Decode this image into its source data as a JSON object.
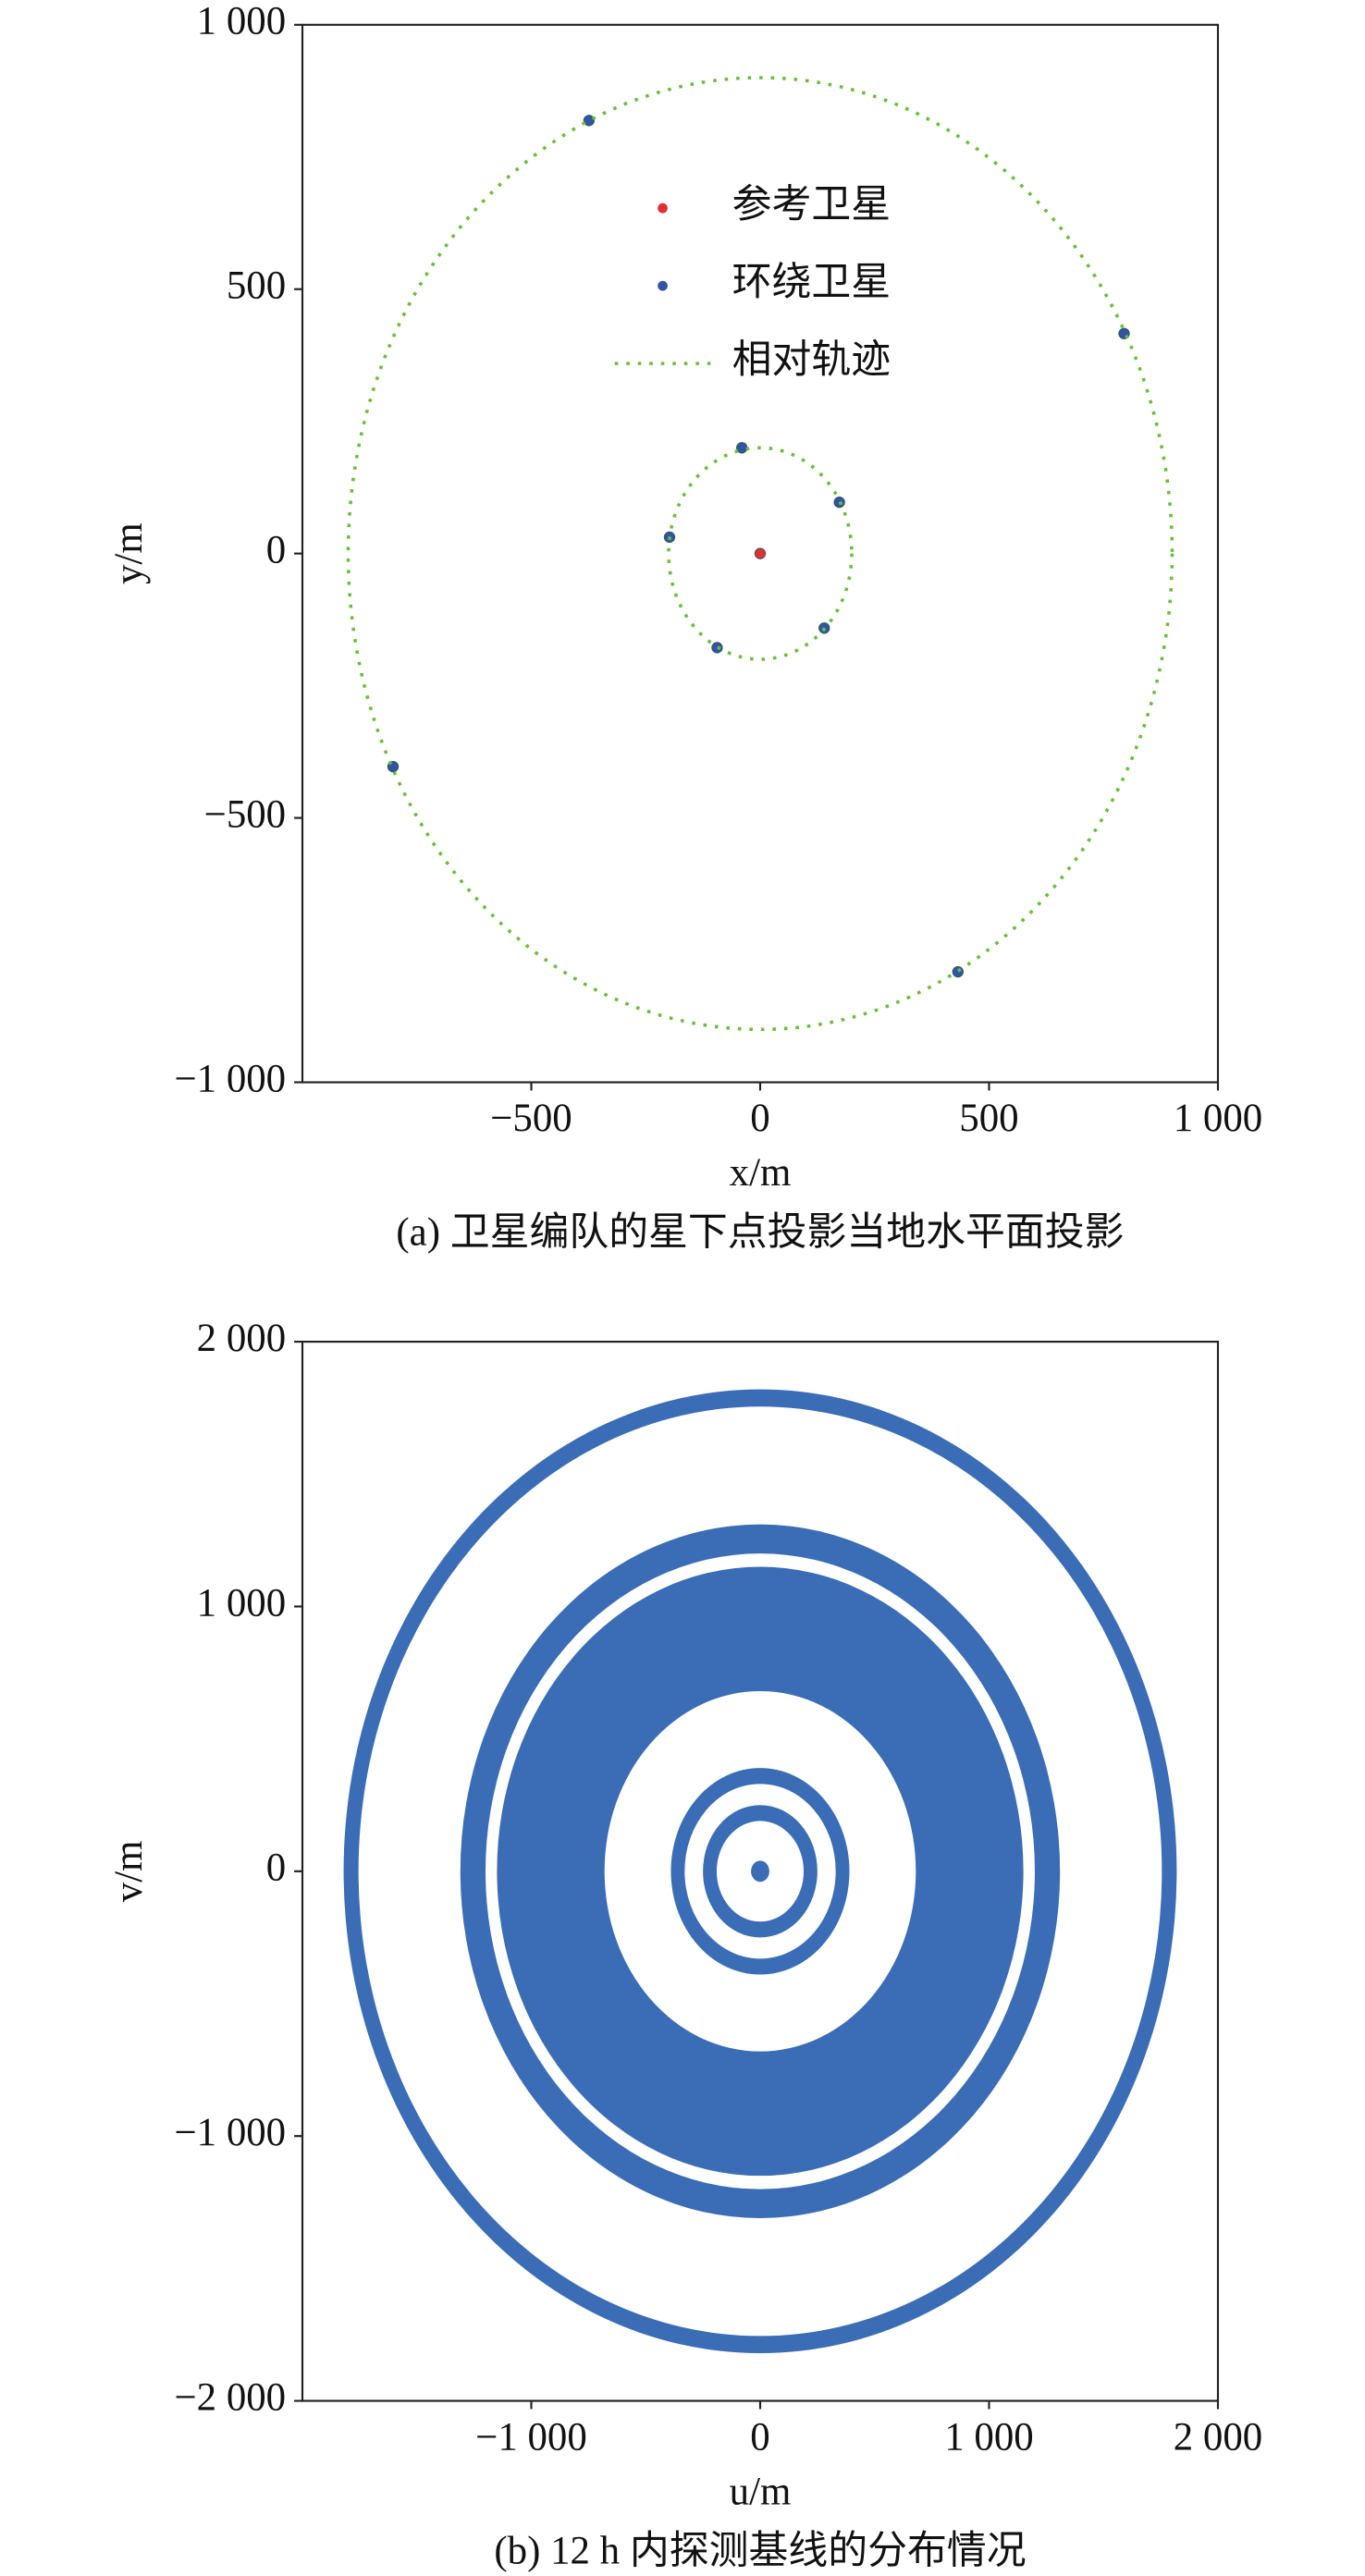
{
  "chart_data": [
    {
      "type": "scatter",
      "xlabel": "x/m",
      "ylabel": "y/m",
      "caption": "(a) 卫星编队的星下点投影当地水平面投影",
      "xlim": [
        -1000,
        1000
      ],
      "ylim": [
        -1000,
        1000
      ],
      "xticks": [
        {
          "value": -500,
          "label": "−500"
        },
        0,
        500,
        {
          "value": 1000,
          "label": "1 000"
        }
      ],
      "yticks": [
        {
          "value": -1000,
          "label": "−1 000"
        },
        {
          "value": -500,
          "label": "−500"
        },
        0,
        500,
        {
          "value": 1000,
          "label": "1 000"
        }
      ],
      "legend": "upper center",
      "series": [
        {
          "name": "参考卫星",
          "color": "#e03030",
          "x": [
            0
          ],
          "y": [
            0
          ]
        },
        {
          "name": "环绕卫星",
          "color": "#2f55a4",
          "x": [
            -374,
            795,
            -802,
            432,
            -40,
            173,
            -198,
            -94,
            140
          ],
          "y": [
            819,
            416,
            -403,
            -791,
            200,
            97,
            31,
            -178,
            -141
          ]
        },
        {
          "name": "相对轨迹",
          "color": "#6abf3a",
          "line": "dotted",
          "radii": [
            900,
            200
          ]
        }
      ]
    },
    {
      "type": "rings",
      "xlabel": "u/m",
      "ylabel": "v/m",
      "caption": "(b) 12 h 内探测基线的分布情况",
      "color": "#3a6db5",
      "xlim": [
        -2000,
        2000
      ],
      "ylim": [
        -2000,
        2000
      ],
      "xticks": [
        {
          "value": -1000,
          "label": "−1 000"
        },
        0,
        {
          "value": 1000,
          "label": "1 000"
        },
        {
          "value": 2000,
          "label": "2 000"
        }
      ],
      "yticks": [
        {
          "value": -2000,
          "label": "−2 000"
        },
        {
          "value": -1000,
          "label": "−1 000"
        },
        0,
        {
          "value": 1000,
          "label": "1 000"
        },
        {
          "value": 2000,
          "label": "2 000"
        }
      ],
      "rings": [
        [
          1755,
          1820
        ],
        [
          1200,
          1310
        ],
        [
          680,
          1150
        ],
        [
          330,
          390
        ],
        [
          190,
          250
        ],
        [
          0,
          40
        ]
      ]
    }
  ]
}
